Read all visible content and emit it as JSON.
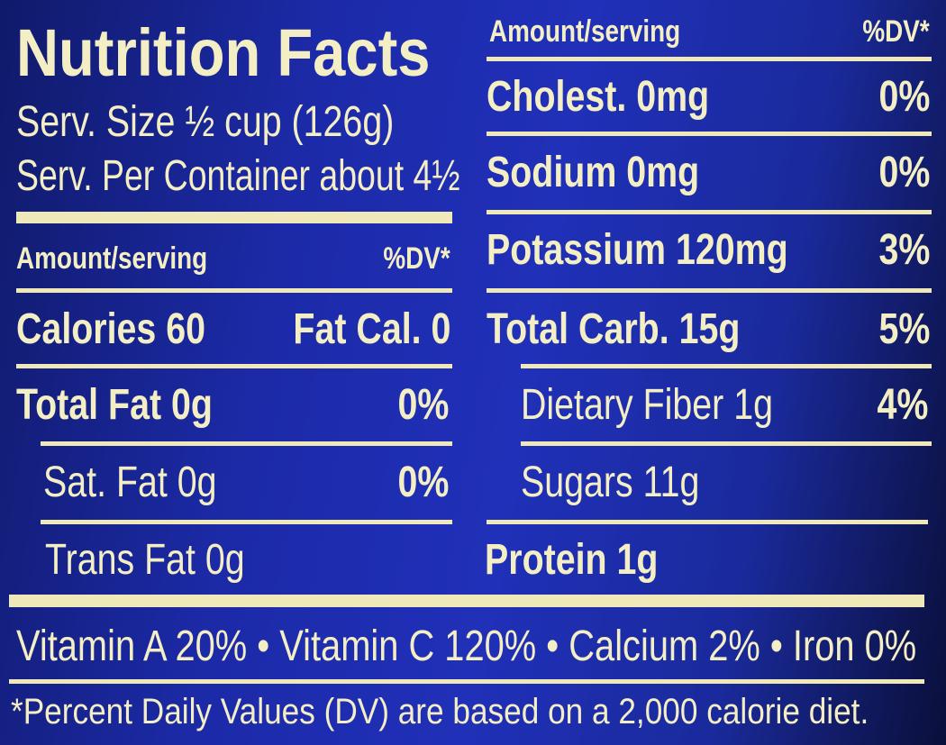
{
  "title": "Nutrition Facts",
  "serving_size": "Serv. Size ½ cup (126g)",
  "servings_per_container": "Serv. Per Container about 4½",
  "left": {
    "header": {
      "amount": "Amount/serving",
      "dv": "%DV*"
    },
    "rows": [
      {
        "label": "Calories 60",
        "fat_calories": "Fat Cal. 0"
      },
      {
        "label": "Total Fat 0g",
        "dv": "0%"
      },
      {
        "label": "Sat. Fat 0g",
        "dv": "0%"
      },
      {
        "label": "Trans Fat 0g"
      }
    ]
  },
  "right": {
    "header": {
      "amount": "Amount/serving",
      "dv": "%DV*"
    },
    "rows": [
      {
        "label": "Cholest. 0mg",
        "dv": "0%"
      },
      {
        "label": "Sodium 0mg",
        "dv": "0%"
      },
      {
        "label": "Potassium 120mg",
        "dv": "3%"
      },
      {
        "label": "Total Carb. 15g",
        "dv": "5%"
      },
      {
        "label": "Dietary Fiber 1g",
        "dv": "4%"
      },
      {
        "label": "Sugars 11g"
      },
      {
        "label": "Protein 1g"
      }
    ]
  },
  "vitamins": "Vitamin A 20% • Vitamin C 120% • Calcium 2% • Iron 0%",
  "footnote": "*Percent Daily Values (DV) are based on a 2,000 calorie diet."
}
